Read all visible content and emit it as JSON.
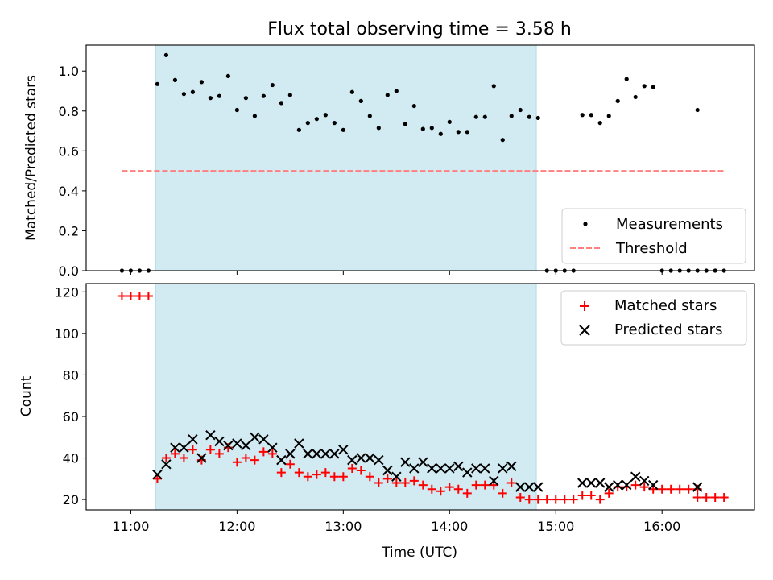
{
  "chart_data": [
    {
      "type": "scatter",
      "title": "Flux total observing time = 3.58 h",
      "xlabel": "",
      "ylabel": "Matched/Predicted stars",
      "ylim": [
        0,
        1.13
      ],
      "xlim_hours": [
        10.58,
        16.87
      ],
      "yticks": [
        0.0,
        0.2,
        0.4,
        0.6,
        0.8,
        1.0
      ],
      "ytick_labels": [
        "0.0",
        "0.2",
        "0.4",
        "0.6",
        "0.8",
        "1.0"
      ],
      "shaded_interval": [
        "11:14",
        "14:49"
      ],
      "shade_color": "#add8e6",
      "legend_position": "lower-right",
      "series": [
        {
          "name": "Measurements",
          "marker": "dot",
          "color": "#000000",
          "points": [
            [
              "10:55",
              0.0
            ],
            [
              "11:00",
              0.0
            ],
            [
              "11:05",
              0.0
            ],
            [
              "11:10",
              0.0
            ],
            [
              "11:15",
              0.935
            ],
            [
              "11:20",
              1.08
            ],
            [
              "11:25",
              0.955
            ],
            [
              "11:30",
              0.885
            ],
            [
              "11:35",
              0.895
            ],
            [
              "11:40",
              0.945
            ],
            [
              "11:45",
              0.865
            ],
            [
              "11:50",
              0.875
            ],
            [
              "11:55",
              0.975
            ],
            [
              "12:00",
              0.805
            ],
            [
              "12:05",
              0.865
            ],
            [
              "12:10",
              0.775
            ],
            [
              "12:15",
              0.875
            ],
            [
              "12:20",
              0.93
            ],
            [
              "12:25",
              0.84
            ],
            [
              "12:30",
              0.88
            ],
            [
              "12:35",
              0.705
            ],
            [
              "12:40",
              0.74
            ],
            [
              "12:45",
              0.76
            ],
            [
              "12:50",
              0.78
            ],
            [
              "12:55",
              0.74
            ],
            [
              "13:00",
              0.705
            ],
            [
              "13:05",
              0.895
            ],
            [
              "13:10",
              0.85
            ],
            [
              "13:15",
              0.775
            ],
            [
              "13:20",
              0.715
            ],
            [
              "13:25",
              0.88
            ],
            [
              "13:30",
              0.9
            ],
            [
              "13:35",
              0.735
            ],
            [
              "13:40",
              0.825
            ],
            [
              "13:45",
              0.71
            ],
            [
              "13:50",
              0.715
            ],
            [
              "13:55",
              0.685
            ],
            [
              "14:00",
              0.745
            ],
            [
              "14:05",
              0.695
            ],
            [
              "14:10",
              0.695
            ],
            [
              "14:15",
              0.77
            ],
            [
              "14:20",
              0.77
            ],
            [
              "14:25",
              0.925
            ],
            [
              "14:30",
              0.655
            ],
            [
              "14:35",
              0.775
            ],
            [
              "14:40",
              0.805
            ],
            [
              "14:45",
              0.77
            ],
            [
              "14:50",
              0.765
            ],
            [
              "14:55",
              0.0
            ],
            [
              "15:00",
              0.0
            ],
            [
              "15:05",
              0.0
            ],
            [
              "15:10",
              0.0
            ],
            [
              "15:15",
              0.78
            ],
            [
              "15:20",
              0.78
            ],
            [
              "15:25",
              0.74
            ],
            [
              "15:30",
              0.775
            ],
            [
              "15:35",
              0.85
            ],
            [
              "15:40",
              0.96
            ],
            [
              "15:45",
              0.87
            ],
            [
              "15:50",
              0.925
            ],
            [
              "15:55",
              0.92
            ],
            [
              "16:00",
              0.0
            ],
            [
              "16:05",
              0.0
            ],
            [
              "16:10",
              0.0
            ],
            [
              "16:15",
              0.0
            ],
            [
              "16:20",
              0.0
            ],
            [
              "16:20",
              0.805
            ],
            [
              "16:25",
              0.0
            ],
            [
              "16:30",
              0.0
            ],
            [
              "16:35",
              0.0
            ]
          ]
        },
        {
          "name": "Threshold",
          "marker": "dashed-line",
          "color": "#ff7f7f",
          "points": [
            [
              "10:55",
              0.5
            ],
            [
              "16:35",
              0.5
            ]
          ]
        }
      ]
    },
    {
      "type": "scatter",
      "title": "",
      "xlabel": "Time (UTC)",
      "ylabel": "Count",
      "ylim": [
        15,
        124
      ],
      "xlim_hours": [
        10.58,
        16.87
      ],
      "yticks": [
        20,
        40,
        60,
        80,
        100,
        120
      ],
      "ytick_labels": [
        "20",
        "40",
        "60",
        "80",
        "100",
        "120"
      ],
      "xticks": [
        "11:00",
        "12:00",
        "13:00",
        "14:00",
        "15:00",
        "16:00"
      ],
      "xtick_labels": [
        "11:00",
        "12:00",
        "13:00",
        "14:00",
        "15:00",
        "16:00"
      ],
      "shaded_interval": [
        "11:14",
        "14:49"
      ],
      "shade_color": "#add8e6",
      "legend_position": "top-right",
      "series": [
        {
          "name": "Matched stars",
          "marker": "plus",
          "color": "#ff0000",
          "points": [
            [
              "10:55",
              118
            ],
            [
              "11:00",
              118
            ],
            [
              "11:05",
              118
            ],
            [
              "11:10",
              118
            ],
            [
              "11:15",
              30
            ],
            [
              "11:20",
              40
            ],
            [
              "11:25",
              42
            ],
            [
              "11:30",
              40
            ],
            [
              "11:35",
              44
            ],
            [
              "11:40",
              39
            ],
            [
              "11:45",
              44
            ],
            [
              "11:50",
              42
            ],
            [
              "11:55",
              45
            ],
            [
              "12:00",
              38
            ],
            [
              "12:05",
              40
            ],
            [
              "12:10",
              39
            ],
            [
              "12:15",
              43
            ],
            [
              "12:20",
              42
            ],
            [
              "12:25",
              33
            ],
            [
              "12:30",
              37
            ],
            [
              "12:35",
              33
            ],
            [
              "12:40",
              31
            ],
            [
              "12:45",
              32
            ],
            [
              "12:50",
              33
            ],
            [
              "12:55",
              31
            ],
            [
              "13:00",
              31
            ],
            [
              "13:05",
              35
            ],
            [
              "13:10",
              34
            ],
            [
              "13:15",
              31
            ],
            [
              "13:20",
              28
            ],
            [
              "13:25",
              30
            ],
            [
              "13:30",
              28
            ],
            [
              "13:35",
              28
            ],
            [
              "13:40",
              29
            ],
            [
              "13:45",
              27
            ],
            [
              "13:50",
              25
            ],
            [
              "13:55",
              24
            ],
            [
              "14:00",
              26
            ],
            [
              "14:05",
              25
            ],
            [
              "14:10",
              23
            ],
            [
              "14:15",
              27
            ],
            [
              "14:20",
              27
            ],
            [
              "14:25",
              27
            ],
            [
              "14:30",
              23
            ],
            [
              "14:35",
              28
            ],
            [
              "14:40",
              21
            ],
            [
              "14:45",
              20
            ],
            [
              "14:50",
              20
            ],
            [
              "14:55",
              20
            ],
            [
              "15:00",
              20
            ],
            [
              "15:05",
              20
            ],
            [
              "15:10",
              20
            ],
            [
              "15:15",
              22
            ],
            [
              "15:20",
              22
            ],
            [
              "15:25",
              20
            ],
            [
              "15:30",
              23
            ],
            [
              "15:35",
              26
            ],
            [
              "15:40",
              26
            ],
            [
              "15:45",
              27
            ],
            [
              "15:50",
              26
            ],
            [
              "15:55",
              25
            ],
            [
              "16:00",
              25
            ],
            [
              "16:05",
              25
            ],
            [
              "16:10",
              25
            ],
            [
              "16:15",
              25
            ],
            [
              "16:20",
              25
            ],
            [
              "16:20",
              21
            ],
            [
              "16:25",
              21
            ],
            [
              "16:30",
              21
            ],
            [
              "16:35",
              21
            ]
          ]
        },
        {
          "name": "Predicted stars",
          "marker": "x",
          "color": "#000000",
          "points": [
            [
              "11:15",
              32
            ],
            [
              "11:20",
              37
            ],
            [
              "11:25",
              45
            ],
            [
              "11:30",
              45
            ],
            [
              "11:35",
              49
            ],
            [
              "11:40",
              40
            ],
            [
              "11:45",
              51
            ],
            [
              "11:50",
              48
            ],
            [
              "11:55",
              46
            ],
            [
              "12:00",
              47
            ],
            [
              "12:05",
              46
            ],
            [
              "12:10",
              50
            ],
            [
              "12:15",
              49
            ],
            [
              "12:20",
              45
            ],
            [
              "12:25",
              39
            ],
            [
              "12:30",
              42
            ],
            [
              "12:35",
              47
            ],
            [
              "12:40",
              42
            ],
            [
              "12:45",
              42
            ],
            [
              "12:50",
              42
            ],
            [
              "12:55",
              42
            ],
            [
              "13:00",
              44
            ],
            [
              "13:05",
              39
            ],
            [
              "13:10",
              40
            ],
            [
              "13:15",
              40
            ],
            [
              "13:20",
              39
            ],
            [
              "13:25",
              34
            ],
            [
              "13:30",
              31
            ],
            [
              "13:35",
              38
            ],
            [
              "13:40",
              35
            ],
            [
              "13:45",
              38
            ],
            [
              "13:50",
              35
            ],
            [
              "13:55",
              35
            ],
            [
              "14:00",
              35
            ],
            [
              "14:05",
              36
            ],
            [
              "14:10",
              33
            ],
            [
              "14:15",
              35
            ],
            [
              "14:20",
              35
            ],
            [
              "14:25",
              29
            ],
            [
              "14:30",
              35
            ],
            [
              "14:35",
              36
            ],
            [
              "14:40",
              26
            ],
            [
              "14:45",
              26
            ],
            [
              "14:50",
              26
            ],
            [
              "15:15",
              28
            ],
            [
              "15:20",
              28
            ],
            [
              "15:25",
              28
            ],
            [
              "15:30",
              26
            ],
            [
              "15:35",
              27
            ],
            [
              "15:40",
              27
            ],
            [
              "15:45",
              31
            ],
            [
              "15:50",
              29
            ],
            [
              "15:55",
              27
            ],
            [
              "16:20",
              26
            ]
          ]
        }
      ]
    }
  ]
}
